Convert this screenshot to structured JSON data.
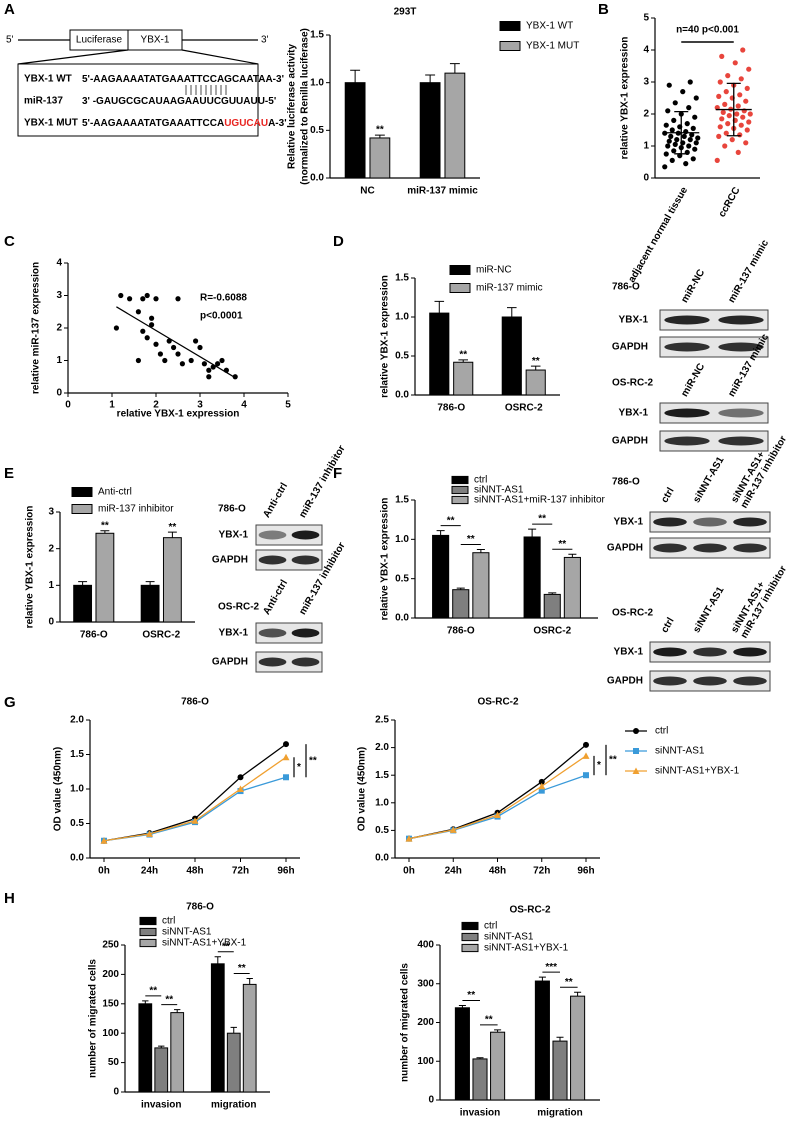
{
  "panel_labels": [
    "A",
    "B",
    "C",
    "D",
    "E",
    "F",
    "G",
    "H"
  ],
  "diagram": {
    "five_prime": "5'",
    "three_prime": "3'",
    "boxes": [
      "Luciferase",
      "YBX-1"
    ],
    "sequences": [
      {
        "name": "YBX-1 WT",
        "parts": [
          {
            "text": "5'-AAGAAAATATGAAATTCCAGCAATAA-3'"
          }
        ]
      },
      {
        "name": "miR-137",
        "parts": [
          {
            "text": "3' -GAUGCGCAUAAGAAUUCGUUAUU-5'"
          }
        ]
      },
      {
        "name": "YBX-1 MUT",
        "parts": [
          {
            "text": "5'-AAGAAAATATGAAATTCCA"
          },
          {
            "text": "UGUCAU",
            "color": "#e8231f"
          },
          {
            "text": "A-3'"
          }
        ]
      }
    ]
  },
  "blots": [
    {
      "groups": [
        {
          "cell": "786-O",
          "lanes": [
            [
              "miR-NC"
            ],
            [
              "miR-137 mimic"
            ]
          ],
          "rows": [
            "YBX-1",
            "GAPDH"
          ]
        },
        {
          "cell": "OS-RC-2",
          "lanes": [
            [
              "miR-NC"
            ],
            [
              "miR-137 mimic"
            ]
          ],
          "rows": [
            "YBX-1",
            "GAPDH"
          ]
        }
      ]
    },
    {
      "groups": [
        {
          "cell": "786-O",
          "lanes": [
            [
              "Anti-ctrl"
            ],
            [
              "miR-137 inhibitor"
            ]
          ],
          "rows": [
            "YBX-1",
            "GAPDH"
          ]
        },
        {
          "cell": "OS-RC-2",
          "lanes": [
            [
              "Anti-ctrl"
            ],
            [
              "miR-137 inhibitor"
            ]
          ],
          "rows": [
            "YBX-1",
            "GAPDH"
          ]
        }
      ]
    },
    {
      "groups": [
        {
          "cell": "786-O",
          "lanes": [
            [
              "ctrl"
            ],
            [
              "siNNT-AS1"
            ],
            [
              "siNNT-AS1+",
              "miR-137 inhibitor"
            ]
          ],
          "rows": [
            "YBX-1",
            "GAPDH"
          ]
        },
        {
          "cell": "OS-RC-2",
          "lanes": [
            [
              "ctrl"
            ],
            [
              "siNNT-AS1"
            ],
            [
              "siNNT-AS1+",
              "miR-137 inhibitor"
            ]
          ],
          "rows": [
            "YBX-1",
            "GAPDH"
          ]
        }
      ]
    }
  ],
  "chart_data": [
    {
      "type": "bar",
      "title": "293T",
      "y_label": [
        "Relative luciferase activity",
        "(normalized to Renilla luciferase)"
      ],
      "categories": [
        "NC",
        "miR-137 mimic"
      ],
      "series": [
        {
          "name": "YBX-1 WT",
          "color": "#000000",
          "values": [
            1.0,
            1.0
          ],
          "errors": [
            0.13,
            0.08
          ]
        },
        {
          "name": "YBX-1 MUT",
          "color": "#a6a6a6",
          "values": [
            0.42,
            1.1
          ],
          "errors": [
            0.03,
            0.1
          ]
        }
      ],
      "ylim": [
        0,
        1.5
      ],
      "yticks": [
        {
          "value": 0,
          "label": "0.0"
        },
        0.5,
        {
          "value": 1,
          "label": "1.0"
        },
        1.5
      ],
      "annotations": [
        "**"
      ]
    },
    {
      "type": "strip",
      "y_label": "relative YBX-1 expression",
      "categories": [
        "adjacent normal tissue",
        "ccRCC"
      ],
      "series": [
        {
          "color": "#000000",
          "values": [
            0.35,
            0.45,
            0.55,
            0.6,
            0.7,
            0.75,
            0.8,
            0.85,
            0.9,
            0.95,
            1.0,
            1.0,
            1.05,
            1.1,
            1.1,
            1.15,
            1.2,
            1.2,
            1.25,
            1.3,
            1.3,
            1.35,
            1.4,
            1.4,
            1.45,
            1.5,
            1.55,
            1.6,
            1.65,
            1.7,
            1.8,
            1.9,
            2.0,
            2.1,
            2.2,
            2.35,
            2.5,
            2.7,
            2.9,
            3.0
          ]
        },
        {
          "color": "#e8453c",
          "values": [
            0.55,
            0.8,
            1.0,
            1.1,
            1.2,
            1.3,
            1.35,
            1.4,
            1.5,
            1.55,
            1.6,
            1.65,
            1.7,
            1.75,
            1.8,
            1.85,
            1.9,
            1.95,
            2.0,
            2.0,
            2.05,
            2.1,
            2.15,
            2.2,
            2.25,
            2.3,
            2.4,
            2.5,
            2.55,
            2.6,
            2.7,
            2.8,
            2.9,
            3.0,
            3.1,
            3.2,
            3.4,
            3.6,
            3.8,
            4.0
          ]
        }
      ],
      "ylim": [
        0,
        5
      ],
      "yticks": [
        0,
        1,
        2,
        3,
        4,
        5
      ],
      "annotations": [
        "n=40 p<0.001"
      ]
    },
    {
      "type": "scatter",
      "x_label": "relative YBX-1 expression",
      "y_label": "relative miR-137 expression",
      "color": "#000000",
      "x": [
        1.1,
        1.2,
        1.4,
        1.6,
        1.7,
        1.8,
        1.9,
        2.0,
        1.7,
        1.8,
        1.9,
        2.0,
        2.1,
        2.2,
        2.3,
        2.4,
        2.5,
        2.6,
        2.8,
        2.9,
        3.0,
        3.1,
        3.2,
        3.3,
        3.4,
        3.5,
        3.6,
        3.8,
        1.6,
        2.5,
        3.2
      ],
      "y": [
        2.0,
        3.0,
        2.9,
        2.5,
        2.9,
        3.0,
        2.3,
        2.9,
        1.9,
        1.7,
        2.1,
        1.5,
        1.2,
        1.0,
        1.6,
        1.4,
        1.2,
        0.9,
        1.0,
        1.6,
        1.4,
        0.9,
        0.5,
        0.8,
        0.9,
        1.0,
        0.7,
        0.5,
        1.0,
        2.9,
        0.7
      ],
      "xlim": [
        0,
        5
      ],
      "xticks": [
        0,
        1,
        2,
        3,
        4,
        5
      ],
      "ylim": [
        0,
        4
      ],
      "yticks": [
        0,
        1,
        2,
        3,
        4
      ],
      "annotations": [
        "R=-0.6088",
        "p<0.0001"
      ]
    },
    {
      "type": "bar",
      "y_label": "relative YBX-1 expression",
      "categories": [
        "786-O",
        "OSRC-2"
      ],
      "series": [
        {
          "name": "miR-NC",
          "color": "#000000",
          "values": [
            1.05,
            1.0
          ],
          "errors": [
            0.15,
            0.12
          ]
        },
        {
          "name": "miR-137 mimic",
          "color": "#a6a6a6",
          "values": [
            0.42,
            0.32
          ],
          "errors": [
            0.03,
            0.05
          ]
        }
      ],
      "ylim": [
        0,
        1.5
      ],
      "yticks": [
        {
          "value": 0,
          "label": "0.0"
        },
        0.5,
        {
          "value": 1,
          "label": "1.0"
        },
        1.5
      ],
      "annotations": [
        "**",
        "**"
      ]
    },
    {
      "type": "bar",
      "y_label": "relative YBX-1 expression",
      "categories": [
        "786-O",
        "OSRC-2"
      ],
      "series": [
        {
          "name": "Anti-ctrl",
          "color": "#000000",
          "values": [
            1.0,
            1.0
          ],
          "errors": [
            0.1,
            0.1
          ]
        },
        {
          "name": "miR-137 inhibitor",
          "color": "#a6a6a6",
          "values": [
            2.42,
            2.3
          ],
          "errors": [
            0.07,
            0.15
          ]
        }
      ],
      "ylim": [
        0,
        3
      ],
      "yticks": [
        0,
        1,
        2,
        3
      ],
      "annotations": [
        "**",
        "**"
      ]
    },
    {
      "type": "bar",
      "y_label": "relative YBX-1 expression",
      "categories": [
        "786-O",
        "OSRC-2"
      ],
      "series": [
        {
          "name": "ctrl",
          "color": "#000000",
          "values": [
            1.05,
            1.03
          ],
          "errors": [
            0.06,
            0.1
          ]
        },
        {
          "name": "siNNT-AS1",
          "color": "#7f7f7f",
          "values": [
            0.36,
            0.3
          ],
          "errors": [
            0.02,
            0.02
          ]
        },
        {
          "name": "siNNT-AS1+miR-137 inhibitor",
          "color": "#a6a6a6",
          "values": [
            0.83,
            0.77
          ],
          "errors": [
            0.04,
            0.04
          ]
        }
      ],
      "ylim": [
        0,
        1.5
      ],
      "yticks": [
        {
          "value": 0,
          "label": "0.0"
        },
        0.5,
        {
          "value": 1,
          "label": "1.0"
        },
        1.5
      ],
      "annotations": [
        "**",
        "**",
        "**",
        "**"
      ]
    },
    {
      "type": "line",
      "title": "786-O",
      "y_label": "OD value (450nm)",
      "categories": [
        "0h",
        "24h",
        "48h",
        "72h",
        "96h"
      ],
      "series": [
        {
          "color": "#000000",
          "values": [
            0.25,
            0.36,
            0.57,
            1.17,
            1.65
          ]
        },
        {
          "color": "#3a9ad9",
          "values": [
            0.25,
            0.34,
            0.52,
            0.97,
            1.17
          ]
        },
        {
          "color": "#f0a030",
          "values": [
            0.25,
            0.35,
            0.54,
            1.0,
            1.46
          ]
        }
      ],
      "ylim": [
        0,
        2
      ],
      "yticks": [
        {
          "value": 0,
          "label": "0.0"
        },
        0.5,
        {
          "value": 1,
          "label": "1.0"
        },
        1.5,
        {
          "value": 2,
          "label": "2.0"
        }
      ],
      "annotations": [
        "*",
        "**"
      ]
    },
    {
      "type": "line",
      "title": "OS-RC-2",
      "y_label": "OD value (450nm)",
      "categories": [
        "0h",
        "24h",
        "48h",
        "72h",
        "96h"
      ],
      "series": [
        {
          "name": "ctrl",
          "color": "#000000",
          "values": [
            0.35,
            0.52,
            0.82,
            1.38,
            2.05
          ]
        },
        {
          "name": "siNNT-AS1",
          "color": "#3a9ad9",
          "values": [
            0.35,
            0.5,
            0.75,
            1.22,
            1.5
          ]
        },
        {
          "name": "siNNT-AS1+YBX-1",
          "color": "#f0a030",
          "values": [
            0.35,
            0.51,
            0.78,
            1.3,
            1.85
          ]
        }
      ],
      "ylim": [
        0,
        2.5
      ],
      "yticks": [
        {
          "value": 0,
          "label": "0.0"
        },
        0.5,
        {
          "value": 1,
          "label": "1.0"
        },
        1.5,
        {
          "value": 2,
          "label": "2.0"
        },
        2.5
      ],
      "annotations": [
        "*",
        "**"
      ]
    },
    {
      "type": "bar",
      "title": "786-O",
      "y_label": "number of migrated cells",
      "categories": [
        "invasion",
        "migration"
      ],
      "series": [
        {
          "name": "ctrl",
          "color": "#000000",
          "values": [
            150,
            218
          ],
          "errors": [
            5,
            12
          ]
        },
        {
          "name": "siNNT-AS1",
          "color": "#7f7f7f",
          "values": [
            75,
            100
          ],
          "errors": [
            3,
            10
          ]
        },
        {
          "name": "siNNT-AS1+YBX-1",
          "color": "#a6a6a6",
          "values": [
            135,
            183
          ],
          "errors": [
            5,
            10
          ]
        }
      ],
      "ylim": [
        0,
        250
      ],
      "yticks": [
        0,
        50,
        100,
        150,
        200,
        250
      ],
      "annotations": [
        "**",
        "**",
        "**",
        "**"
      ]
    },
    {
      "type": "bar",
      "title": "OS-RC-2",
      "y_label": "number of migrated cells",
      "categories": [
        "invasion",
        "migration"
      ],
      "series": [
        {
          "name": "ctrl",
          "color": "#000000",
          "values": [
            238,
            307
          ],
          "errors": [
            6,
            10
          ]
        },
        {
          "name": "siNNT-AS1",
          "color": "#7f7f7f",
          "values": [
            106,
            152
          ],
          "errors": [
            3,
            10
          ]
        },
        {
          "name": "siNNT-AS1+YBX-1",
          "color": "#a6a6a6",
          "values": [
            175,
            268
          ],
          "errors": [
            6,
            10
          ]
        }
      ],
      "ylim": [
        0,
        400
      ],
      "yticks": [
        0,
        100,
        200,
        300,
        400
      ],
      "annotations": [
        "**",
        "**",
        "***",
        "**"
      ]
    }
  ]
}
